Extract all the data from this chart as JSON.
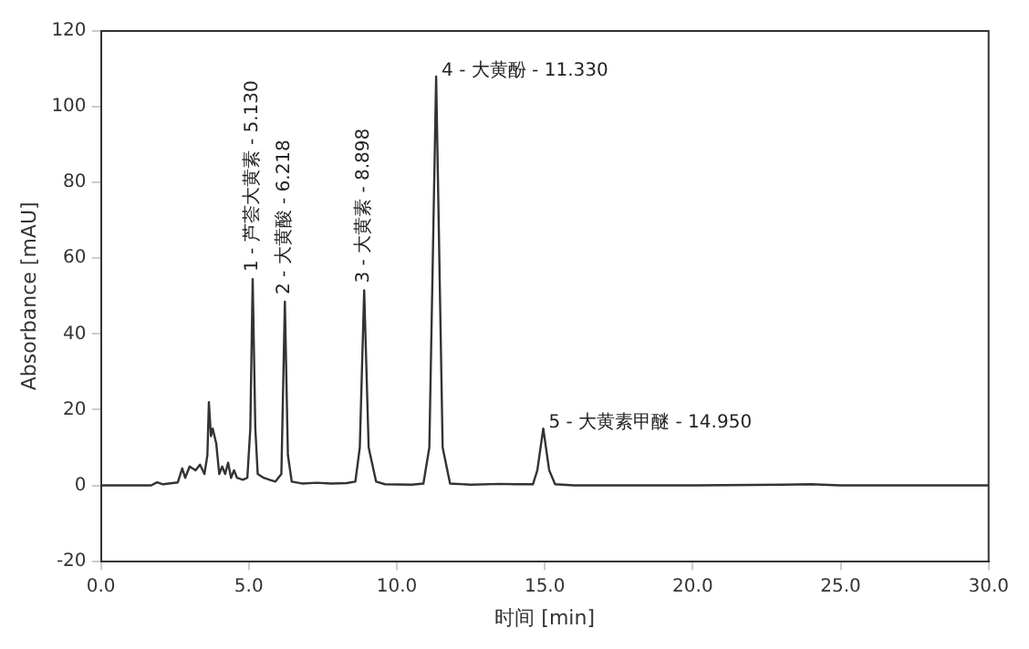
{
  "chart_data": {
    "type": "line",
    "xlabel": "时间 [min]",
    "ylabel": "Absorbance [mAU]",
    "xlim": [
      0,
      30
    ],
    "xticks": [
      {
        "value": 0,
        "label": "0.0"
      },
      {
        "value": 5,
        "label": "5.0"
      },
      {
        "value": 10,
        "label": "10.0"
      },
      {
        "value": 15,
        "label": "15.0"
      },
      {
        "value": 20,
        "label": "20.0"
      },
      {
        "value": 25,
        "label": "25.0"
      },
      {
        "value": 30,
        "label": "30.0"
      }
    ],
    "ylim": [
      -20,
      120
    ],
    "yticks": [
      -20,
      0,
      20,
      40,
      60,
      80,
      100,
      120
    ],
    "grid": false,
    "legend": false,
    "marker": "none",
    "line_style": "solid",
    "x": [
      0,
      1.7,
      1.9,
      2.1,
      2.6,
      2.75,
      2.85,
      3.0,
      3.2,
      3.35,
      3.5,
      3.6,
      3.65,
      3.72,
      3.78,
      3.9,
      4.0,
      4.1,
      4.2,
      4.3,
      4.4,
      4.5,
      4.6,
      4.8,
      4.95,
      5.05,
      5.13,
      5.22,
      5.3,
      5.5,
      5.7,
      5.9,
      6.1,
      6.218,
      6.32,
      6.45,
      6.8,
      7.3,
      7.8,
      8.3,
      8.6,
      8.75,
      8.898,
      9.05,
      9.3,
      9.6,
      10.5,
      10.9,
      11.1,
      11.33,
      11.55,
      11.8,
      12.5,
      13.5,
      14.0,
      14.6,
      14.75,
      14.95,
      15.15,
      15.35,
      16,
      20,
      23,
      24,
      25,
      30
    ],
    "series": [
      {
        "color": "#333333",
        "values": [
          0,
          0,
          0.8,
          0.3,
          0.8,
          4.5,
          2,
          5,
          4,
          5.5,
          3,
          8,
          22,
          13,
          15,
          11,
          3,
          5,
          3,
          6,
          2,
          4,
          2,
          1.5,
          2,
          15,
          54.5,
          15,
          3,
          2,
          1.5,
          1,
          3,
          48.5,
          8,
          1,
          0.5,
          0.7,
          0.5,
          0.6,
          1,
          10,
          51.5,
          10,
          1,
          0.3,
          0.2,
          0.5,
          10,
          108,
          10,
          0.5,
          0.2,
          0.4,
          0.3,
          0.3,
          4,
          15,
          4,
          0.3,
          0,
          0,
          0.2,
          0.3,
          0,
          0
        ]
      }
    ],
    "annotations": [
      {
        "text": "1 - 芦荟大黄素 - 5.130",
        "x": 5.13,
        "y": 54.5
      },
      {
        "text": "2 - 大黄酸 - 6.218",
        "x": 6.218,
        "y": 48.5
      },
      {
        "text": "3 - 大黄素 - 8.898",
        "x": 8.898,
        "y": 51.5
      },
      {
        "text": "4 - 大黄酚 - 11.330",
        "x": 11.33,
        "y": 108
      },
      {
        "text": "5 - 大黄素甲醚 - 14.950",
        "x": 14.95,
        "y": 15
      }
    ]
  }
}
